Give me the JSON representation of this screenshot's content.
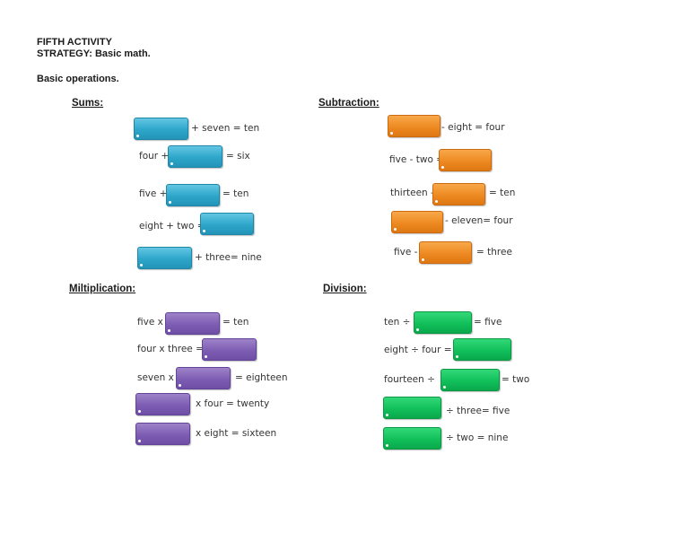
{
  "header": {
    "line1": "FIFTH  ACTIVITY",
    "line2": "STRATEGY: Basic math.",
    "subtitle": "Basic operations."
  },
  "sums": {
    "title": "Sums:",
    "rows": [
      {
        "after": "+ seven = ten"
      },
      {
        "before": "four +",
        "after": "= six"
      },
      {
        "before": "five +",
        "after": "= ten"
      },
      {
        "before": "eight + two ="
      },
      {
        "after": "+ three= nine"
      }
    ]
  },
  "subtraction": {
    "title": "Subtraction:",
    "rows": [
      {
        "after": "- eight = four"
      },
      {
        "before": "five - two ="
      },
      {
        "before": "thirteen -",
        "after": "= ten"
      },
      {
        "after": "- eleven= four"
      },
      {
        "before": "five -",
        "after": "= three"
      }
    ]
  },
  "multiplication": {
    "title": "Miltiplication:",
    "rows": [
      {
        "before": "five x",
        "after": "= ten"
      },
      {
        "before": "four x three ="
      },
      {
        "before": "seven x",
        "after": "= eighteen"
      },
      {
        "after": "x four = twenty"
      },
      {
        "after": "x eight = sixteen"
      }
    ]
  },
  "division": {
    "title": "Division:",
    "rows": [
      {
        "before": "ten ÷",
        "after": "= five"
      },
      {
        "before": "eight ÷ four ="
      },
      {
        "before": "fourteen ÷",
        "after": "= two"
      },
      {
        "after": "÷ three= five"
      },
      {
        "after": "÷ two = nine"
      }
    ]
  },
  "colors": {
    "sums": "#2da6c9",
    "subtraction": "#ee8a22",
    "multiplication": "#7d5db3",
    "division": "#11c05a"
  }
}
